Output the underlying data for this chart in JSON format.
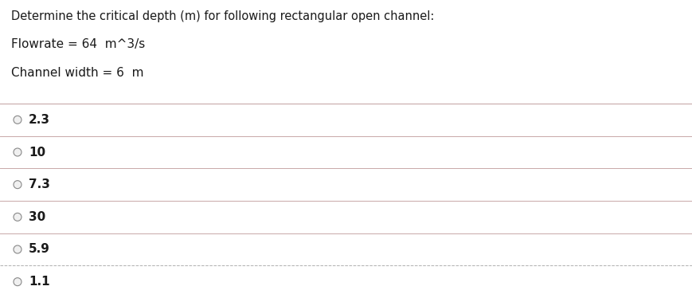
{
  "title": "Determine the critical depth (m) for following rectangular open channel:",
  "line1": "Flowrate = 64  m^3/s",
  "line2": "Channel width = 6  m",
  "options": [
    "2.3",
    "10",
    "7.3",
    "30",
    "5.9",
    "1.1"
  ],
  "bg_color": "#ffffff",
  "text_color": "#1a1a1a",
  "line_color": "#c8a8a8",
  "dashed_line_color": "#b0b0b0",
  "font_size_title": 10.5,
  "font_size_options": 11,
  "font_size_info": 11,
  "fig_width": 8.69,
  "fig_height": 3.74,
  "dpi": 100
}
